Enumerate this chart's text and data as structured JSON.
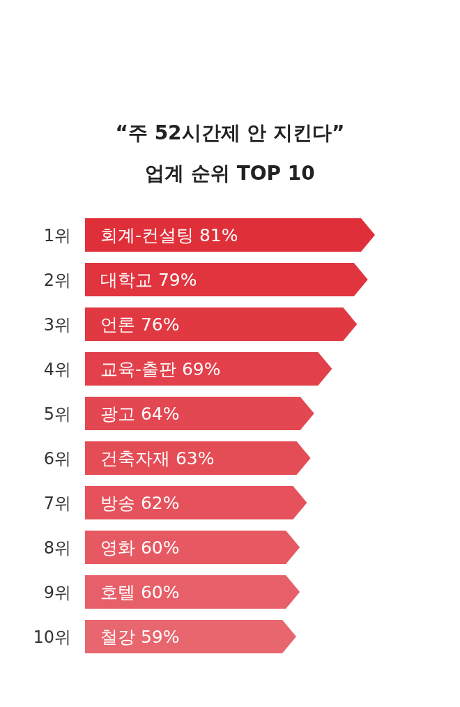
{
  "chart_data": {
    "type": "bar",
    "orientation": "horizontal",
    "title": "“주 52시간제 안 지킨다”",
    "subtitle": "업계 순위 TOP 10",
    "categories": [
      "1위",
      "2위",
      "3위",
      "4위",
      "5위",
      "6위",
      "7위",
      "8위",
      "9위",
      "10위"
    ],
    "values": [
      81,
      79,
      76,
      69,
      64,
      63,
      62,
      60,
      60,
      59
    ],
    "value_labels": [
      "회계-컨설팅  81%",
      "대학교 79%",
      "언론 76%",
      "교육-출판 69%",
      "광고 64%",
      "건축자재 63%",
      "방송 62%",
      "영화 60%",
      "호텔 60%",
      "철강 59%"
    ],
    "colors": [
      "#df2f39",
      "#e0343e",
      "#e13942",
      "#e2414b",
      "#e34751",
      "#e44c56",
      "#e5525c",
      "#e65962",
      "#e75f68",
      "#e8666e"
    ]
  }
}
